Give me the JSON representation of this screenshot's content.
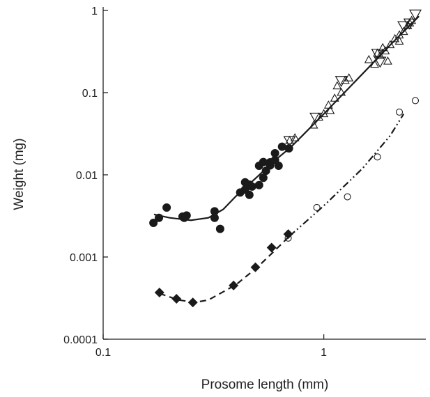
{
  "chart_data": {
    "type": "scatter",
    "x_label": "Prosome length (mm)",
    "y_label": "Weight (mg)",
    "log_x": true,
    "log_y": true,
    "xlim": [
      0.1,
      2.9
    ],
    "ylim": [
      0.0001,
      1
    ],
    "xticks": [
      0.1,
      1
    ],
    "yticks": [
      0.0001,
      0.001,
      0.01,
      0.1,
      1
    ],
    "series": [
      {
        "marker": "filled-circle",
        "color": "#1a1a1a",
        "x": [
          0.169,
          0.179,
          0.194,
          0.229,
          0.239,
          0.233,
          0.32,
          0.32,
          0.339,
          0.418,
          0.44,
          0.44,
          0.46,
          0.46,
          0.473,
          0.509,
          0.509,
          0.532,
          0.532,
          0.547,
          0.571,
          0.571,
          0.601,
          0.601,
          0.624,
          0.647,
          0.695
        ],
        "values": [
          0.0026,
          0.003,
          0.004,
          0.0031,
          0.0032,
          0.003,
          0.0036,
          0.003,
          0.0022,
          0.0061,
          0.0066,
          0.0081,
          0.0076,
          0.0057,
          0.0072,
          0.0129,
          0.0075,
          0.0092,
          0.0143,
          0.0112,
          0.0142,
          0.013,
          0.0183,
          0.0151,
          0.0129,
          0.022,
          0.021
        ]
      },
      {
        "marker": "open-triangle-up",
        "color": "#1a1a1a",
        "x": [
          0.7,
          0.74,
          0.9,
          0.95,
          1.0,
          1.05,
          1.07,
          1.12,
          1.15,
          1.2,
          1.25,
          1.3,
          1.6,
          1.7,
          1.75,
          1.8,
          1.85,
          1.9,
          2.0,
          2.1,
          2.2,
          2.3,
          2.4,
          2.45,
          2.5,
          1.95,
          2.2
        ],
        "values": [
          0.026,
          0.028,
          0.04,
          0.05,
          0.055,
          0.07,
          0.06,
          0.085,
          0.12,
          0.1,
          0.14,
          0.15,
          0.25,
          0.22,
          0.3,
          0.28,
          0.35,
          0.32,
          0.38,
          0.45,
          0.5,
          0.55,
          0.65,
          0.7,
          0.75,
          0.24,
          0.42
        ]
      },
      {
        "marker": "open-triangle-down",
        "color": "#1a1a1a",
        "x": [
          0.7,
          0.92,
          1.2,
          1.75,
          1.8,
          2.3,
          2.45,
          2.6
        ],
        "values": [
          0.026,
          0.05,
          0.14,
          0.3,
          0.24,
          0.65,
          0.7,
          0.9
        ]
      },
      {
        "marker": "filled-diamond",
        "color": "#1a1a1a",
        "x": [
          0.18,
          0.215,
          0.255,
          0.39,
          0.49,
          0.58,
          0.69
        ],
        "values": [
          0.00037,
          0.00031,
          0.00028,
          0.00045,
          0.00075,
          0.0013,
          0.0019
        ]
      },
      {
        "marker": "open-circle",
        "color": "#1a1a1a",
        "x": [
          0.69,
          0.93,
          1.28,
          1.75,
          2.2,
          2.6
        ],
        "values": [
          0.0017,
          0.004,
          0.0054,
          0.0165,
          0.058,
          0.08
        ]
      },
      {
        "marker": "line",
        "style": "solid",
        "color": "#1a1a1a",
        "x": [
          0.17,
          0.2,
          0.25,
          0.3,
          0.35,
          0.4,
          0.5,
          0.6,
          0.7,
          0.8,
          1,
          1.5,
          2,
          2.7
        ],
        "values": [
          0.0033,
          0.003,
          0.0028,
          0.003,
          0.0038,
          0.0055,
          0.0095,
          0.015,
          0.021,
          0.03,
          0.055,
          0.17,
          0.38,
          0.85
        ]
      },
      {
        "marker": "line",
        "style": "dashed",
        "color": "#1a1a1a",
        "x": [
          0.18,
          0.22,
          0.26,
          0.3,
          0.4,
          0.5,
          0.6,
          0.7
        ],
        "values": [
          0.00036,
          0.0003,
          0.00028,
          0.0003,
          0.00046,
          0.00075,
          0.0012,
          0.0018
        ]
      },
      {
        "marker": "line",
        "style": "dash-dot-dot",
        "color": "#1a1a1a",
        "x": [
          0.7,
          1,
          1.5,
          2,
          2.3
        ],
        "values": [
          0.0018,
          0.0042,
          0.012,
          0.03,
          0.055
        ]
      }
    ]
  }
}
